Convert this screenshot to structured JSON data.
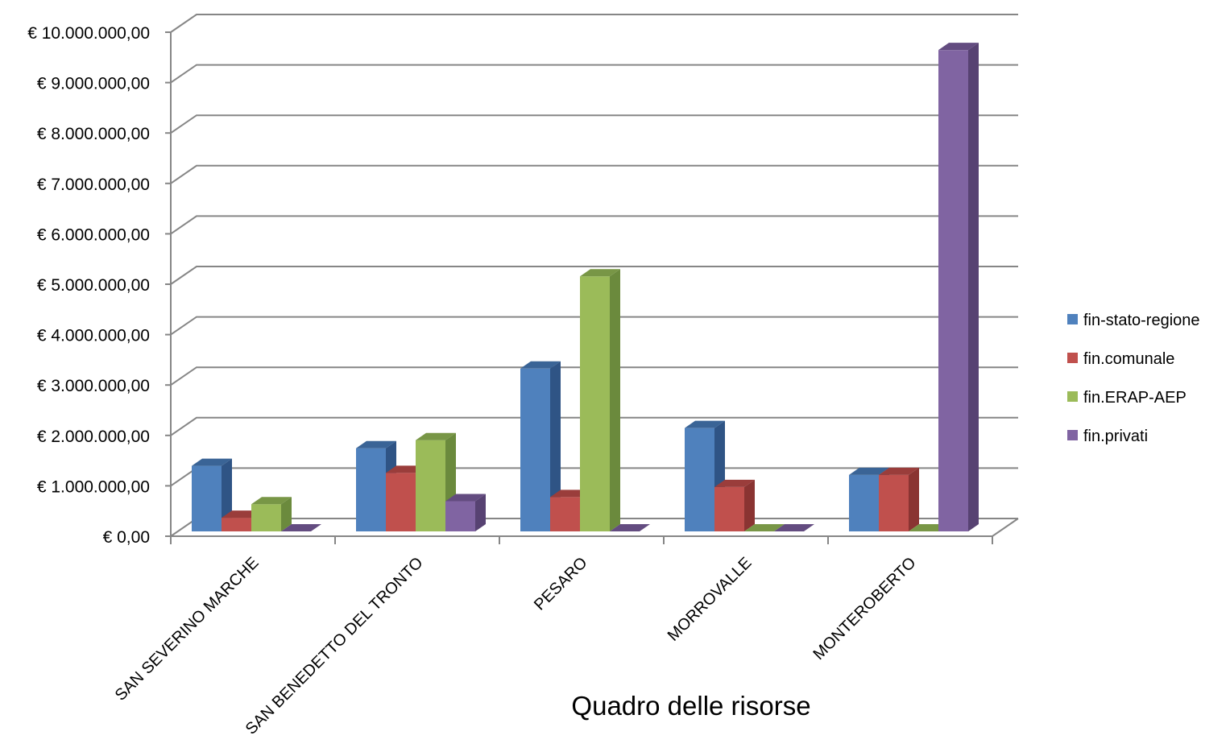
{
  "chart_data": {
    "type": "bar",
    "subtype": "3d-clustered-column",
    "xlabel": "Quadro delle risorse",
    "ylabel": "",
    "ylim": [
      0,
      10000000
    ],
    "y_ticks": [
      0,
      1000000,
      2000000,
      3000000,
      4000000,
      5000000,
      6000000,
      7000000,
      8000000,
      9000000,
      10000000
    ],
    "y_tick_labels": [
      "€ 0,00",
      "€ 1.000.000,00",
      "€ 2.000.000,00",
      "€ 3.000.000,00",
      "€ 4.000.000,00",
      "€ 5.000.000,00",
      "€ 6.000.000,00",
      "€ 7.000.000,00",
      "€ 8.000.000,00",
      "€ 9.000.000,00",
      "€ 10.000.000,00"
    ],
    "grid": true,
    "legend_position": "right",
    "categories": [
      "SAN SEVERINO MARCHE",
      "SAN BENEDETTO DEL TRONTO",
      "PESARO",
      "MORROVALLE",
      "MONTEROBERTO"
    ],
    "series": [
      {
        "name": "fin-stato-regione",
        "color": "#4F81BD",
        "top_color": "#3A6496",
        "side_color": "#2F5485",
        "values": [
          1300000,
          1650000,
          3230000,
          2050000,
          1120000
        ]
      },
      {
        "name": "fin.comunale",
        "color": "#C0504D",
        "top_color": "#9A3D3B",
        "side_color": "#8A3432",
        "values": [
          270000,
          1160000,
          680000,
          880000,
          1120000
        ]
      },
      {
        "name": "fin.ERAP-AEP",
        "color": "#9BBB59",
        "top_color": "#789646",
        "side_color": "#6B8A3D",
        "values": [
          540000,
          1810000,
          5060000,
          0,
          0
        ]
      },
      {
        "name": "fin.privati",
        "color": "#8064A2",
        "top_color": "#634C80",
        "side_color": "#574272",
        "values": [
          0,
          600000,
          0,
          0,
          9550000
        ]
      }
    ]
  }
}
